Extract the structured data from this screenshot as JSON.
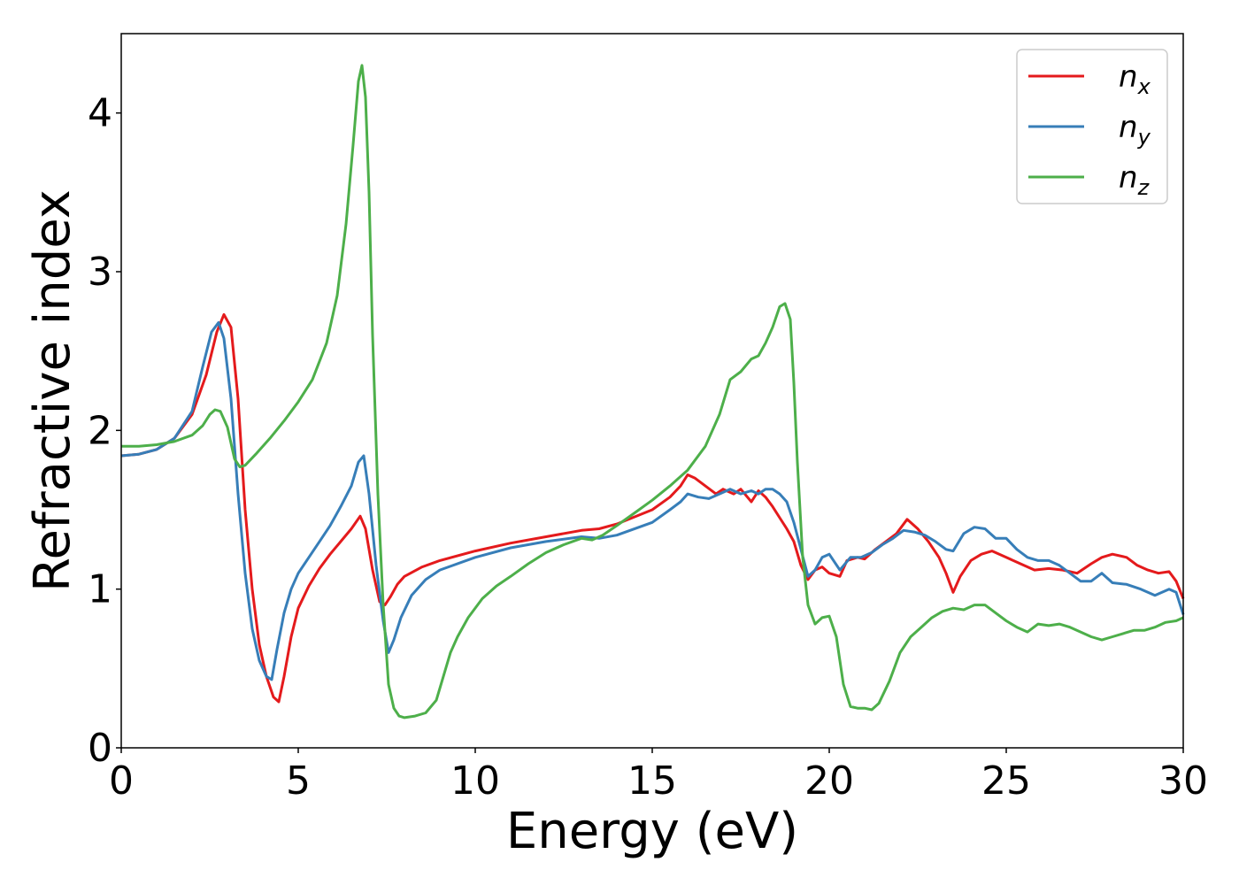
{
  "chart_data": {
    "type": "line",
    "title": "",
    "xlabel": "Energy (eV)",
    "ylabel": "Refractive index",
    "xlim": [
      0,
      30
    ],
    "ylim": [
      0,
      4.5
    ],
    "xticks": [
      0,
      5,
      10,
      15,
      20,
      25,
      30
    ],
    "yticks": [
      0,
      1,
      2,
      3,
      4
    ],
    "grid": false,
    "legend_position": "top-right",
    "series": [
      {
        "name": "n_x",
        "label_base": "n",
        "label_sub": "x",
        "color": "#e41a1c",
        "x": [
          0,
          0.5,
          1.0,
          1.5,
          2.0,
          2.4,
          2.7,
          2.9,
          3.1,
          3.3,
          3.5,
          3.7,
          3.9,
          4.1,
          4.3,
          4.45,
          4.6,
          4.8,
          5.0,
          5.3,
          5.6,
          5.9,
          6.2,
          6.5,
          6.75,
          6.9,
          7.1,
          7.3,
          7.45,
          7.6,
          7.8,
          8.0,
          8.5,
          9.0,
          10,
          11,
          12,
          13,
          13.5,
          14,
          15,
          15.5,
          15.8,
          16.0,
          16.2,
          16.5,
          16.8,
          17.0,
          17.3,
          17.5,
          17.8,
          18.0,
          18.2,
          18.4,
          18.6,
          18.8,
          19.0,
          19.2,
          19.4,
          19.6,
          19.8,
          20.0,
          20.3,
          20.5,
          20.8,
          21.0,
          21.3,
          21.6,
          21.9,
          22.2,
          22.5,
          22.8,
          23.1,
          23.3,
          23.5,
          23.7,
          24.0,
          24.3,
          24.6,
          25.0,
          25.4,
          25.8,
          26.2,
          26.6,
          27.0,
          27.4,
          27.7,
          28.0,
          28.4,
          28.7,
          29.0,
          29.3,
          29.6,
          29.8,
          30.0
        ],
        "y": [
          1.84,
          1.85,
          1.88,
          1.95,
          2.1,
          2.35,
          2.62,
          2.73,
          2.65,
          2.2,
          1.5,
          1.0,
          0.65,
          0.45,
          0.32,
          0.29,
          0.45,
          0.7,
          0.88,
          1.02,
          1.13,
          1.22,
          1.3,
          1.38,
          1.46,
          1.38,
          1.12,
          0.92,
          0.9,
          0.95,
          1.03,
          1.08,
          1.14,
          1.18,
          1.24,
          1.29,
          1.33,
          1.37,
          1.38,
          1.41,
          1.5,
          1.58,
          1.65,
          1.72,
          1.7,
          1.65,
          1.6,
          1.63,
          1.6,
          1.63,
          1.55,
          1.62,
          1.58,
          1.52,
          1.45,
          1.38,
          1.3,
          1.15,
          1.06,
          1.12,
          1.14,
          1.1,
          1.08,
          1.18,
          1.2,
          1.19,
          1.25,
          1.3,
          1.35,
          1.44,
          1.38,
          1.3,
          1.2,
          1.1,
          0.98,
          1.08,
          1.18,
          1.22,
          1.24,
          1.2,
          1.16,
          1.12,
          1.13,
          1.12,
          1.1,
          1.16,
          1.2,
          1.22,
          1.2,
          1.15,
          1.12,
          1.1,
          1.11,
          1.05,
          0.94
        ]
      },
      {
        "name": "n_y",
        "label_base": "n",
        "label_sub": "y",
        "color": "#377eb8",
        "x": [
          0,
          0.5,
          1.0,
          1.5,
          2.0,
          2.3,
          2.55,
          2.75,
          2.9,
          3.1,
          3.3,
          3.5,
          3.7,
          3.9,
          4.1,
          4.25,
          4.4,
          4.6,
          4.8,
          5.0,
          5.3,
          5.6,
          5.9,
          6.2,
          6.5,
          6.7,
          6.85,
          7.0,
          7.2,
          7.4,
          7.55,
          7.7,
          7.9,
          8.2,
          8.6,
          9.0,
          10,
          11,
          12,
          13,
          13.5,
          14,
          15,
          15.5,
          15.8,
          16.0,
          16.3,
          16.6,
          16.9,
          17.2,
          17.5,
          17.8,
          18.0,
          18.2,
          18.4,
          18.6,
          18.8,
          19.0,
          19.2,
          19.4,
          19.6,
          19.8,
          20.0,
          20.3,
          20.6,
          20.9,
          21.2,
          21.5,
          21.8,
          22.1,
          22.4,
          22.7,
          23.0,
          23.3,
          23.5,
          23.8,
          24.1,
          24.4,
          24.7,
          25.0,
          25.3,
          25.6,
          25.9,
          26.2,
          26.5,
          26.8,
          27.1,
          27.4,
          27.7,
          28.0,
          28.4,
          28.8,
          29.2,
          29.6,
          29.8,
          30.0
        ],
        "y": [
          1.84,
          1.85,
          1.88,
          1.95,
          2.12,
          2.4,
          2.62,
          2.68,
          2.58,
          2.2,
          1.6,
          1.1,
          0.75,
          0.55,
          0.45,
          0.43,
          0.62,
          0.85,
          1.0,
          1.1,
          1.2,
          1.3,
          1.4,
          1.52,
          1.65,
          1.8,
          1.84,
          1.6,
          1.15,
          0.8,
          0.6,
          0.68,
          0.82,
          0.96,
          1.06,
          1.12,
          1.2,
          1.26,
          1.3,
          1.33,
          1.32,
          1.34,
          1.42,
          1.5,
          1.55,
          1.6,
          1.58,
          1.57,
          1.6,
          1.63,
          1.6,
          1.62,
          1.6,
          1.63,
          1.63,
          1.6,
          1.55,
          1.42,
          1.25,
          1.08,
          1.12,
          1.2,
          1.22,
          1.12,
          1.2,
          1.2,
          1.23,
          1.28,
          1.32,
          1.37,
          1.36,
          1.34,
          1.3,
          1.25,
          1.24,
          1.35,
          1.39,
          1.38,
          1.32,
          1.32,
          1.25,
          1.2,
          1.18,
          1.18,
          1.15,
          1.1,
          1.05,
          1.05,
          1.1,
          1.04,
          1.03,
          1.0,
          0.96,
          1.0,
          0.98,
          0.84
        ]
      },
      {
        "name": "n_z",
        "label_base": "n",
        "label_sub": "z",
        "color": "#4daf4a",
        "x": [
          0,
          0.5,
          1.0,
          1.5,
          2.0,
          2.3,
          2.5,
          2.65,
          2.8,
          3.0,
          3.2,
          3.35,
          3.5,
          3.8,
          4.2,
          4.6,
          5.0,
          5.4,
          5.8,
          6.1,
          6.35,
          6.55,
          6.7,
          6.8,
          6.9,
          7.0,
          7.1,
          7.25,
          7.4,
          7.55,
          7.7,
          7.85,
          8.0,
          8.3,
          8.6,
          8.9,
          9.1,
          9.3,
          9.5,
          9.8,
          10.2,
          10.6,
          11.0,
          11.5,
          12,
          12.5,
          13,
          13.3,
          13.6,
          14,
          14.5,
          15,
          15.5,
          16,
          16.5,
          16.9,
          17.2,
          17.5,
          17.8,
          18.0,
          18.2,
          18.4,
          18.6,
          18.75,
          18.9,
          19.0,
          19.1,
          19.25,
          19.4,
          19.6,
          19.8,
          20.0,
          20.2,
          20.4,
          20.6,
          20.8,
          21.0,
          21.2,
          21.4,
          21.7,
          22.0,
          22.3,
          22.6,
          22.9,
          23.2,
          23.5,
          23.8,
          24.1,
          24.4,
          24.7,
          25.0,
          25.3,
          25.6,
          25.9,
          26.2,
          26.5,
          26.8,
          27.1,
          27.4,
          27.7,
          28.0,
          28.3,
          28.6,
          28.9,
          29.2,
          29.5,
          29.8,
          30.0
        ],
        "y": [
          1.9,
          1.9,
          1.91,
          1.93,
          1.97,
          2.03,
          2.1,
          2.13,
          2.12,
          2.02,
          1.82,
          1.77,
          1.78,
          1.85,
          1.95,
          2.06,
          2.18,
          2.32,
          2.55,
          2.85,
          3.3,
          3.8,
          4.2,
          4.3,
          4.1,
          3.5,
          2.6,
          1.6,
          0.9,
          0.4,
          0.25,
          0.2,
          0.19,
          0.2,
          0.22,
          0.3,
          0.45,
          0.6,
          0.7,
          0.82,
          0.94,
          1.02,
          1.08,
          1.16,
          1.23,
          1.28,
          1.32,
          1.31,
          1.34,
          1.4,
          1.48,
          1.56,
          1.65,
          1.75,
          1.9,
          2.1,
          2.32,
          2.37,
          2.45,
          2.47,
          2.55,
          2.65,
          2.78,
          2.8,
          2.7,
          2.3,
          1.8,
          1.2,
          0.9,
          0.78,
          0.82,
          0.83,
          0.7,
          0.4,
          0.26,
          0.25,
          0.25,
          0.24,
          0.28,
          0.42,
          0.6,
          0.7,
          0.76,
          0.82,
          0.86,
          0.88,
          0.87,
          0.9,
          0.9,
          0.85,
          0.8,
          0.76,
          0.73,
          0.78,
          0.77,
          0.78,
          0.76,
          0.73,
          0.7,
          0.68,
          0.7,
          0.72,
          0.74,
          0.74,
          0.76,
          0.79,
          0.8,
          0.82
        ]
      }
    ]
  }
}
